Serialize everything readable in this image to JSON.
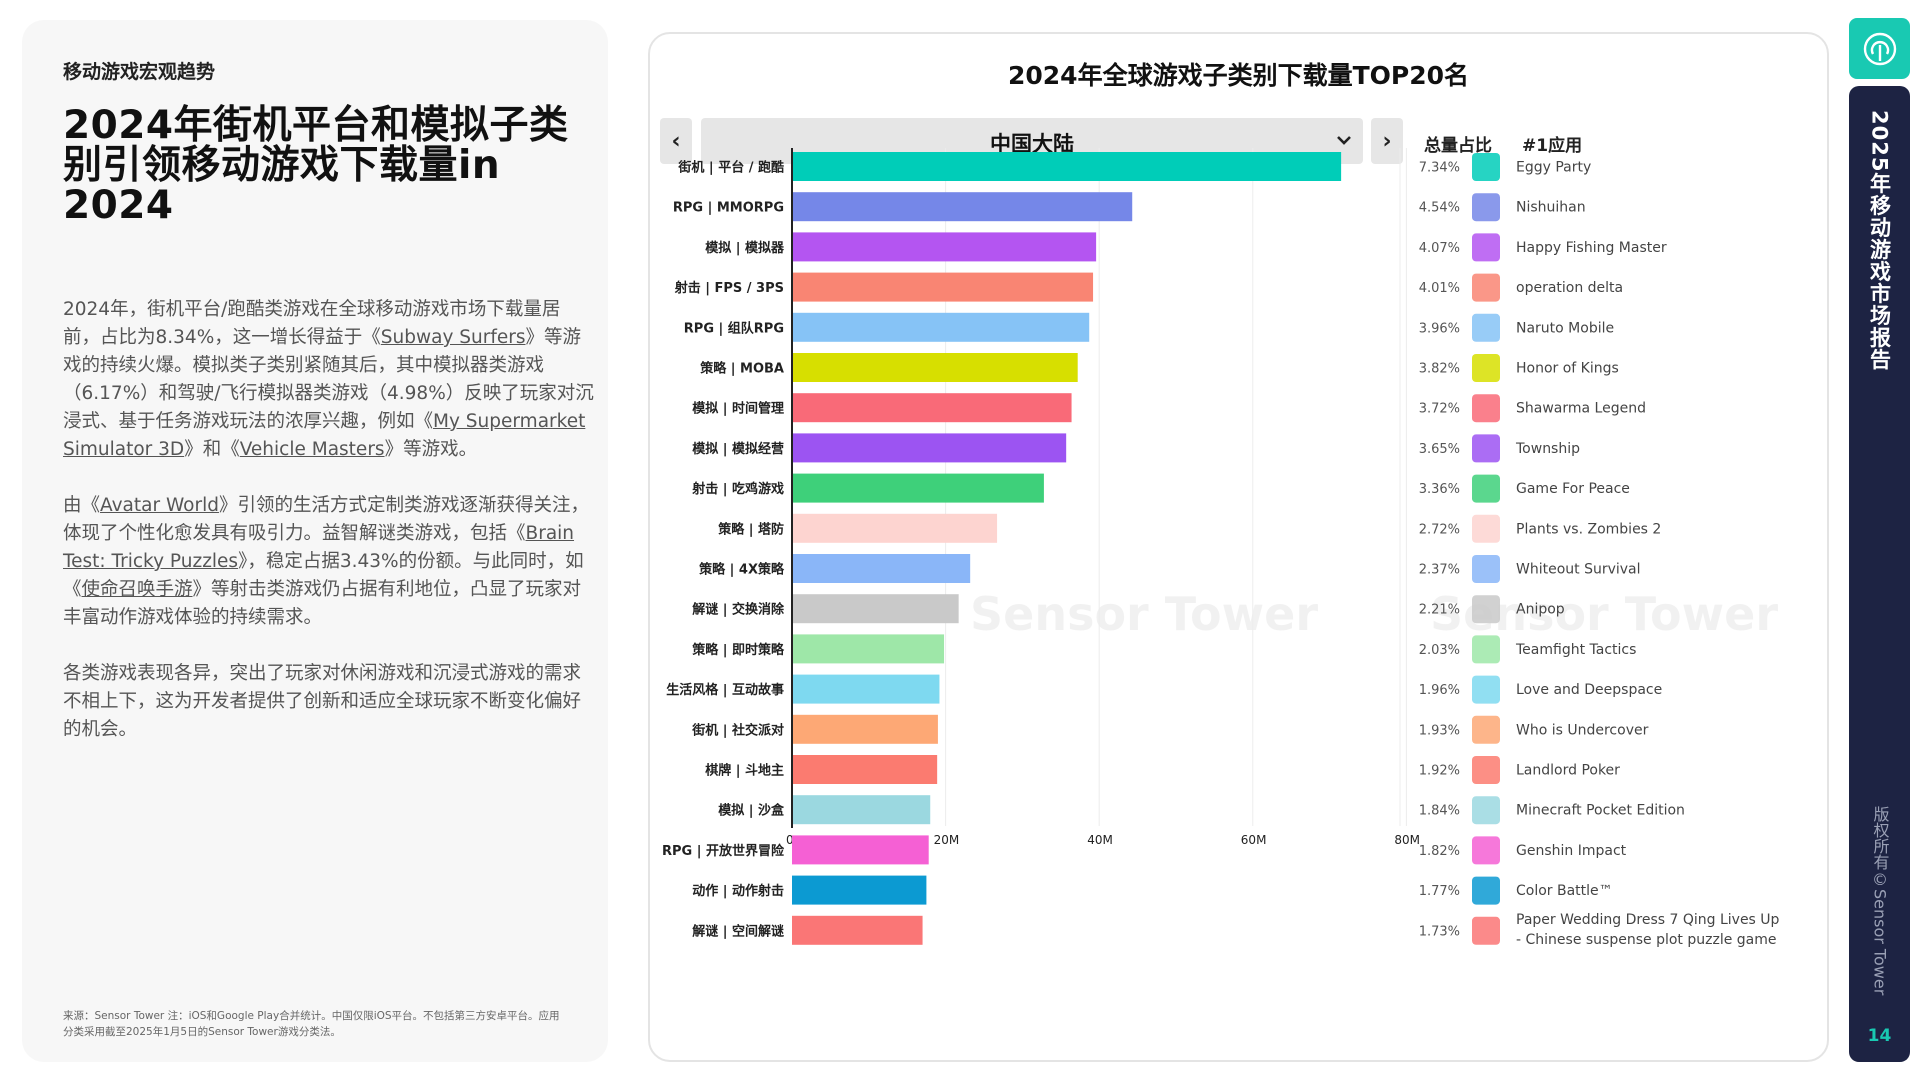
{
  "left": {
    "section": "移动游戏宏观趋势",
    "headline": "2024年街机平台和模拟子类别引领移动游戏下载量in 2024",
    "p1": [
      {
        "t": "2024年，街机平台/跑酷类游戏在全球移动游戏市场下载量居前，占比为8.34%，这一增长得益于《"
      },
      {
        "t": "Subway Surfers",
        "u": true
      },
      {
        "t": "》等游戏的持续火爆。模拟类子类别紧随其后，其中模拟器类游戏（6.17%）和驾驶/飞行模拟器类游戏（4.98%）反映了玩家对沉浸式、基于任务游戏玩法的浓厚兴趣，例如《"
      },
      {
        "t": "My Supermarket Simulator 3D",
        "u": true
      },
      {
        "t": "》和《"
      },
      {
        "t": "Vehicle Masters",
        "u": true
      },
      {
        "t": "》等游戏。"
      }
    ],
    "p2": [
      {
        "t": "由《"
      },
      {
        "t": "Avatar World",
        "u": true
      },
      {
        "t": "》引领的生活方式定制类游戏逐渐获得关注，体现了个性化愈发具有吸引力。益智解谜类游戏，包括《"
      },
      {
        "t": "Brain Test: Tricky Puzzles",
        "u": true
      },
      {
        "t": "》，稳定占据3.43%的份额。与此同时，如《"
      },
      {
        "t": "使命召唤手游",
        "u": true
      },
      {
        "t": "》等射击类游戏仍占据有利地位，凸显了玩家对丰富动作游戏体验的持续需求。"
      }
    ],
    "p3": [
      {
        "t": "各类游戏表现各异，突出了玩家对休闲游戏和沉浸式游戏的需求不相上下，这为开发者提供了创新和适应全球玩家不断变化偏好的机会。"
      }
    ],
    "footnote": "来源：Sensor Tower 注：iOS和Google Play合并统计。中国仅限iOS平台。不包括第三方安卓平台。应用分类采用截至2025年1月5日的Sensor Tower游戏分类法。"
  },
  "chart": {
    "title": "2024年全球游戏子类别下载量TOP20名",
    "region": "中国大陆",
    "prev_label": "‹",
    "next_label": "›",
    "share_header": "总量占比",
    "app_header": "#1应用",
    "watermark": "Sensor Tower"
  },
  "chart_data": {
    "type": "bar",
    "orientation": "horizontal",
    "categories": [
      "街机 | 平台 / 跑酷",
      "RPG | MMORPG",
      "模拟 | 模拟器",
      "射击 | FPS / 3PS",
      "RPG | 组队RPG",
      "策略 | MOBA",
      "模拟 | 时间管理",
      "模拟 | 模拟经营",
      "射击 | 吃鸡游戏",
      "策略 | 塔防",
      "策略 | 4X策略",
      "解谜 | 交换消除",
      "策略 | 即时策略",
      "生活风格 | 互动故事",
      "街机 | 社交派对",
      "棋牌 | 斗地主",
      "模拟 | 沙盒",
      "RPG | 开放世界冒险",
      "动作 | 动作射击",
      "解谜 | 空间解谜"
    ],
    "values": [
      71.5,
      44.3,
      39.6,
      39.2,
      38.7,
      37.2,
      36.4,
      35.7,
      32.8,
      26.7,
      23.2,
      21.7,
      19.8,
      19.2,
      19.0,
      18.9,
      18.0,
      17.8,
      17.5,
      17.0
    ],
    "colors": [
      "#00cdb8",
      "#7587e8",
      "#b455f1",
      "#f98573",
      "#86c3f6",
      "#d7df00",
      "#f96a78",
      "#9c54f2",
      "#3ed07a",
      "#fdd4d0",
      "#8ab6f8",
      "#c9c9c9",
      "#9ee7a8",
      "#7ed9f0",
      "#fda875",
      "#fb7b70",
      "#9bd8e0",
      "#f560d4",
      "#0c9ad2",
      "#fa7676"
    ],
    "shares": [
      "7.34%",
      "4.54%",
      "4.07%",
      "4.01%",
      "3.96%",
      "3.82%",
      "3.72%",
      "3.65%",
      "3.36%",
      "2.72%",
      "2.37%",
      "2.21%",
      "2.03%",
      "1.96%",
      "1.93%",
      "1.92%",
      "1.84%",
      "1.82%",
      "1.77%",
      "1.73%"
    ],
    "top_apps": [
      "Eggy Party",
      "Nishuihan",
      "Happy Fishing Master",
      "operation delta",
      "Naruto Mobile",
      "Honor of Kings",
      "Shawarma Legend",
      "Township",
      "Game For Peace",
      "Plants vs. Zombies 2",
      "Whiteout Survival",
      "Anipop",
      "Teamfight Tactics",
      "Love and Deepspace",
      "Who is Undercover",
      "Landlord Poker",
      "Minecraft Pocket Edition",
      "Genshin Impact",
      "Color Battle™",
      "Paper Wedding Dress 7 Qing Lives Up - Chinese suspense plot puzzle game"
    ],
    "x_ticks": [
      "0",
      "20M",
      "40M",
      "60M",
      "80M"
    ],
    "xlim": [
      0,
      80
    ],
    "grid": true
  },
  "side": {
    "title": "2025年移动游戏市场报告",
    "copyright": "版权所有©Sensor Tower",
    "page": "14",
    "accent": "#19c9b2",
    "strip_color": "#1d2343"
  }
}
